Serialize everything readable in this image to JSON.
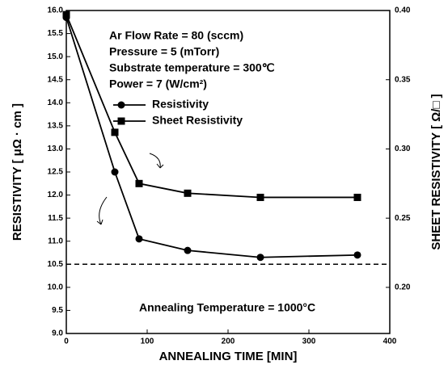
{
  "chart_data": {
    "type": "line",
    "x_label": "ANNEALING TIME [MIN]",
    "y_label": "RESISTIVITY [ μΩ · cm ]",
    "y2_label": "SHEET RESISTIVITY [ Ω/□ ]",
    "annotations": [
      "Ar Flow Rate = 80 (sccm)",
      "Pressure = 5 (mTorr)",
      "Substrate temperature = 300℃",
      "Power = 7 (W/cm²)",
      "Annealing Temperature = 1000°C"
    ],
    "xlim": [
      0,
      400
    ],
    "xticks": [
      0,
      100,
      200,
      300,
      400
    ],
    "ylim": [
      9,
      16
    ],
    "yticks": [
      {
        "value": 9,
        "label": "9.0"
      },
      9.5,
      {
        "value": 10,
        "label": "10.0"
      },
      10.5,
      {
        "value": 11,
        "label": "11.0"
      },
      11.5,
      {
        "value": 12,
        "label": "12.0"
      },
      12.5,
      {
        "value": 13,
        "label": "13.0"
      },
      13.5,
      {
        "value": 14,
        "label": "14.0"
      },
      14.5,
      {
        "value": 15,
        "label": "15.0"
      },
      15.5,
      {
        "value": 16,
        "label": "16.0"
      }
    ],
    "y2lim": [
      0.1667,
      0.4
    ],
    "y2ticks": [
      {
        "value": 0.2,
        "label": "0.20"
      },
      0.25,
      {
        "value": 0.3,
        "label": "0.30"
      },
      0.35,
      {
        "value": 0.4,
        "label": "0.40"
      }
    ],
    "reference_line": 10.5,
    "x": [
      0,
      60,
      90,
      150,
      240,
      360
    ],
    "series": [
      {
        "name": "Resistivity",
        "color": "#000000",
        "marker": "circle",
        "values": [
          15.85,
          12.5,
          11.05,
          10.8,
          10.65,
          10.7
        ]
      },
      {
        "name": "Sheet Resistivity",
        "color": "#000000",
        "marker": "square",
        "axis": "y2",
        "values": [
          0.397,
          0.312,
          0.275,
          0.268,
          0.265,
          0.265
        ]
      }
    ]
  }
}
